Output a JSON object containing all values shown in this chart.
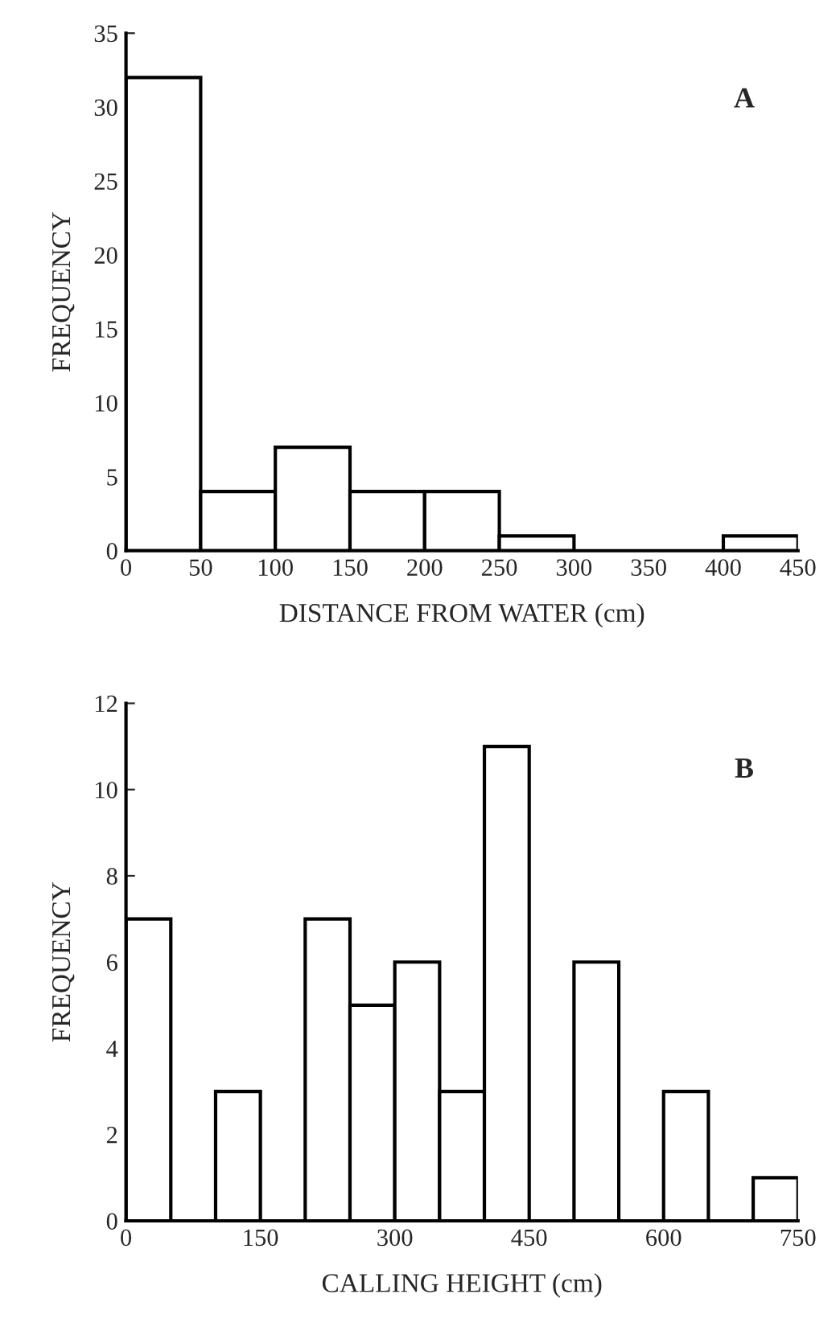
{
  "chart_data": [
    {
      "type": "histogram",
      "xlabel": "DISTANCE FROM WATER (cm)",
      "ylabel": "FREQUENCY",
      "annotations": [
        "A"
      ],
      "bins": [
        0,
        50,
        100,
        150,
        200,
        250,
        300,
        350,
        400,
        450
      ],
      "values": [
        32,
        4,
        7,
        4,
        4,
        1,
        0,
        0,
        1
      ],
      "color": "#ffffff",
      "xlim": [
        0,
        450
      ],
      "xticks": [
        0,
        50,
        100,
        150,
        200,
        250,
        300,
        350,
        400,
        450
      ],
      "ylim": [
        0,
        35
      ],
      "yticks": [
        0,
        5,
        10,
        15,
        20,
        25,
        30,
        35
      ],
      "grid": false
    },
    {
      "type": "histogram",
      "xlabel": "CALLING HEIGHT (cm)",
      "ylabel": "FREQUENCY",
      "annotations": [
        "B"
      ],
      "bins": [
        0,
        50,
        100,
        150,
        200,
        250,
        300,
        350,
        400,
        450,
        500,
        550,
        600,
        650,
        700,
        750
      ],
      "values": [
        7,
        0,
        3,
        0,
        7,
        5,
        6,
        3,
        11,
        0,
        6,
        0,
        3,
        0,
        1
      ],
      "color": "#ffffff",
      "xlim": [
        0,
        750
      ],
      "xticks": [
        0,
        150,
        300,
        450,
        600,
        750
      ],
      "ylim": [
        0,
        12
      ],
      "yticks": [
        0,
        2,
        4,
        6,
        8,
        10,
        12
      ],
      "grid": false
    }
  ]
}
